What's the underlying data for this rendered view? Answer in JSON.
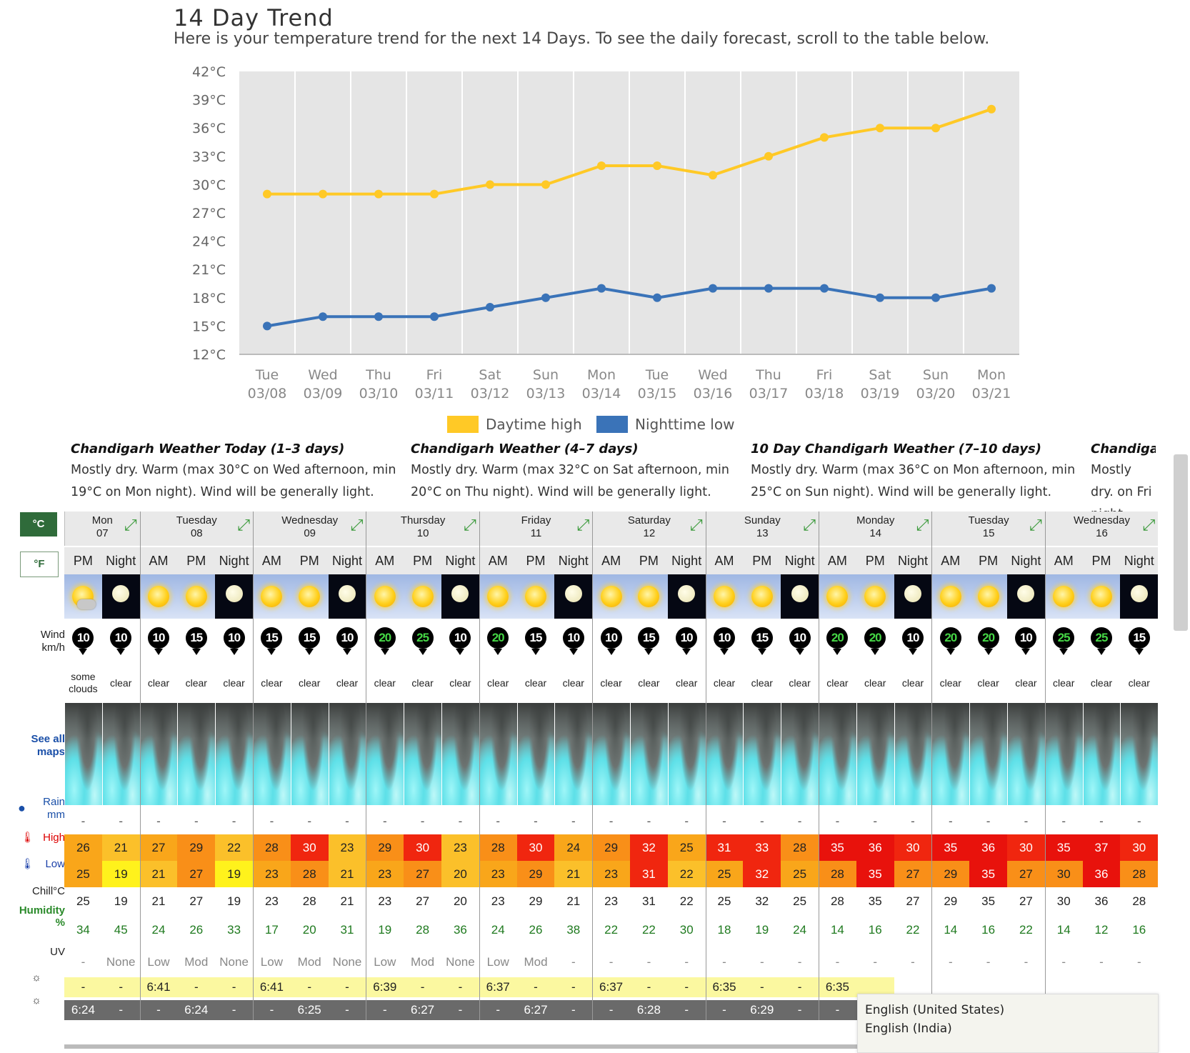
{
  "page": {
    "title": "14 Day Trend",
    "subtitle": "Here is your temperature trend for the next 14 Days. To see the daily forecast, scroll to the table below."
  },
  "chart_data": {
    "type": "line",
    "title": "14 Day Trend",
    "categories": [
      [
        "Tue",
        "03/08"
      ],
      [
        "Wed",
        "03/09"
      ],
      [
        "Thu",
        "03/10"
      ],
      [
        "Fri",
        "03/11"
      ],
      [
        "Sat",
        "03/12"
      ],
      [
        "Sun",
        "03/13"
      ],
      [
        "Mon",
        "03/14"
      ],
      [
        "Tue",
        "03/15"
      ],
      [
        "Wed",
        "03/16"
      ],
      [
        "Thu",
        "03/17"
      ],
      [
        "Fri",
        "03/18"
      ],
      [
        "Sat",
        "03/19"
      ],
      [
        "Sun",
        "03/20"
      ],
      [
        "Mon",
        "03/21"
      ]
    ],
    "y_ticks": [
      "42°C",
      "39°C",
      "36°C",
      "33°C",
      "30°C",
      "27°C",
      "24°C",
      "21°C",
      "18°C",
      "15°C",
      "12°C"
    ],
    "ylim": [
      12,
      42
    ],
    "series": [
      {
        "name": "Daytime high",
        "color": "#ffc926",
        "values": [
          29,
          29,
          29,
          29,
          30,
          30,
          32,
          32,
          31,
          33,
          35,
          36,
          36,
          38
        ]
      },
      {
        "name": "Nighttime low",
        "color": "#3a73b8",
        "values": [
          15,
          16,
          16,
          16,
          17,
          18,
          19,
          18,
          19,
          19,
          19,
          18,
          18,
          19
        ]
      }
    ],
    "grid": true,
    "legend": "bottom-center"
  },
  "summaries": [
    {
      "title": "Chandigarh Weather Today (1–3 days)",
      "text": "Mostly dry. Warm (max 30°C on Wed afternoon, min 19°C on Mon night). Wind will be generally light."
    },
    {
      "title": "Chandigarh Weather (4–7 days)",
      "text": "Mostly dry. Warm (max 32°C on Sat afternoon, min 20°C on Thu night). Wind will be generally light."
    },
    {
      "title": "10 Day Chandigarh Weather (7–10 days)",
      "text": "Mostly dry. Warm (max 36°C on Mon afternoon, min 25°C on Sun night). Wind will be generally light."
    },
    {
      "title": "Chandigarl",
      "text": "Mostly dry. on Fri night"
    }
  ],
  "labels": {
    "celsius": "°C",
    "fahrenheit": "°F",
    "wind": "Wind",
    "wind_unit": "km/h",
    "see_all": "See all",
    "maps": "maps",
    "rain": "Rain",
    "rain_unit": "mm",
    "high": "High",
    "low": "Low",
    "chill": "Chill°C",
    "humidity": "Humidity",
    "humidity_unit": "%",
    "uv": "UV"
  },
  "days": [
    {
      "name": "Mon",
      "date": "07"
    },
    {
      "name": "Tuesday",
      "date": "08"
    },
    {
      "name": "Wednesday",
      "date": "09"
    },
    {
      "name": "Thursday",
      "date": "10"
    },
    {
      "name": "Friday",
      "date": "11"
    },
    {
      "name": "Saturday",
      "date": "12"
    },
    {
      "name": "Sunday",
      "date": "13"
    },
    {
      "name": "Monday",
      "date": "14"
    },
    {
      "name": "Tuesday",
      "date": "15"
    },
    {
      "name": "Wednesday",
      "date": "16"
    }
  ],
  "periods": [
    {
      "p": "PM",
      "cond": "some clouds",
      "wind": "10",
      "high": "26",
      "low": "25",
      "chill": "25",
      "hum": "34",
      "uv": "-",
      "rain": "-",
      "sunrise": "-",
      "sunset": "6:24"
    },
    {
      "p": "Night",
      "cond": "clear",
      "wind": "10",
      "high": "21",
      "low": "19",
      "chill": "19",
      "hum": "45",
      "uv": "None",
      "rain": "-",
      "sunrise": "-",
      "sunset": "-"
    },
    {
      "p": "AM",
      "cond": "clear",
      "wind": "10",
      "high": "27",
      "low": "21",
      "chill": "21",
      "hum": "24",
      "uv": "Low",
      "rain": "-",
      "sunrise": "6:41",
      "sunset": "-"
    },
    {
      "p": "PM",
      "cond": "clear",
      "wind": "15",
      "high": "29",
      "low": "27",
      "chill": "27",
      "hum": "26",
      "uv": "Mod",
      "rain": "-",
      "sunrise": "-",
      "sunset": "6:24"
    },
    {
      "p": "Night",
      "cond": "clear",
      "wind": "10",
      "high": "22",
      "low": "19",
      "chill": "19",
      "hum": "33",
      "uv": "None",
      "rain": "-",
      "sunrise": "-",
      "sunset": "-"
    },
    {
      "p": "AM",
      "cond": "clear",
      "wind": "15",
      "high": "28",
      "low": "23",
      "chill": "23",
      "hum": "17",
      "uv": "Low",
      "rain": "-",
      "sunrise": "6:41",
      "sunset": "-"
    },
    {
      "p": "PM",
      "cond": "clear",
      "wind": "15",
      "high": "30",
      "low": "28",
      "chill": "28",
      "hum": "20",
      "uv": "Mod",
      "rain": "-",
      "sunrise": "-",
      "sunset": "6:25"
    },
    {
      "p": "Night",
      "cond": "clear",
      "wind": "10",
      "high": "23",
      "low": "21",
      "chill": "21",
      "hum": "31",
      "uv": "None",
      "rain": "-",
      "sunrise": "-",
      "sunset": "-"
    },
    {
      "p": "AM",
      "cond": "clear",
      "wind": "20",
      "high": "29",
      "low": "23",
      "chill": "23",
      "hum": "19",
      "uv": "Low",
      "rain": "-",
      "sunrise": "6:39",
      "sunset": "-"
    },
    {
      "p": "PM",
      "cond": "clear",
      "wind": "25",
      "high": "30",
      "low": "27",
      "chill": "27",
      "hum": "28",
      "uv": "Mod",
      "rain": "-",
      "sunrise": "-",
      "sunset": "6:27"
    },
    {
      "p": "Night",
      "cond": "clear",
      "wind": "10",
      "high": "23",
      "low": "20",
      "chill": "20",
      "hum": "36",
      "uv": "None",
      "rain": "-",
      "sunrise": "-",
      "sunset": "-"
    },
    {
      "p": "AM",
      "cond": "clear",
      "wind": "20",
      "high": "28",
      "low": "23",
      "chill": "23",
      "hum": "24",
      "uv": "Low",
      "rain": "-",
      "sunrise": "6:37",
      "sunset": "-"
    },
    {
      "p": "PM",
      "cond": "clear",
      "wind": "15",
      "high": "30",
      "low": "29",
      "chill": "29",
      "hum": "26",
      "uv": "Mod",
      "rain": "-",
      "sunrise": "-",
      "sunset": "6:27"
    },
    {
      "p": "Night",
      "cond": "clear",
      "wind": "10",
      "high": "24",
      "low": "21",
      "chill": "21",
      "hum": "38",
      "uv": "-",
      "rain": "-",
      "sunrise": "-",
      "sunset": "-"
    },
    {
      "p": "AM",
      "cond": "clear",
      "wind": "10",
      "high": "29",
      "low": "23",
      "chill": "23",
      "hum": "22",
      "uv": "-",
      "rain": "-",
      "sunrise": "6:37",
      "sunset": "-"
    },
    {
      "p": "PM",
      "cond": "clear",
      "wind": "15",
      "high": "32",
      "low": "31",
      "chill": "31",
      "hum": "22",
      "uv": "-",
      "rain": "-",
      "sunrise": "-",
      "sunset": "6:28"
    },
    {
      "p": "Night",
      "cond": "clear",
      "wind": "10",
      "high": "25",
      "low": "22",
      "chill": "22",
      "hum": "30",
      "uv": "-",
      "rain": "-",
      "sunrise": "-",
      "sunset": "-"
    },
    {
      "p": "AM",
      "cond": "clear",
      "wind": "10",
      "high": "31",
      "low": "25",
      "chill": "25",
      "hum": "18",
      "uv": "-",
      "rain": "-",
      "sunrise": "6:35",
      "sunset": "-"
    },
    {
      "p": "PM",
      "cond": "clear",
      "wind": "15",
      "high": "33",
      "low": "32",
      "chill": "32",
      "hum": "19",
      "uv": "-",
      "rain": "-",
      "sunrise": "-",
      "sunset": "6:29"
    },
    {
      "p": "Night",
      "cond": "clear",
      "wind": "10",
      "high": "28",
      "low": "25",
      "chill": "25",
      "hum": "24",
      "uv": "-",
      "rain": "-",
      "sunrise": "-",
      "sunset": "-"
    },
    {
      "p": "AM",
      "cond": "clear",
      "wind": "20",
      "high": "35",
      "low": "28",
      "chill": "28",
      "hum": "14",
      "uv": "-",
      "rain": "-",
      "sunrise": "6:35",
      "sunset": "-"
    },
    {
      "p": "PM",
      "cond": "clear",
      "wind": "20",
      "high": "36",
      "low": "35",
      "chill": "35",
      "hum": "16",
      "uv": "-",
      "rain": "-",
      "sunrise": "",
      "sunset": ""
    },
    {
      "p": "Night",
      "cond": "clear",
      "wind": "10",
      "high": "30",
      "low": "27",
      "chill": "27",
      "hum": "22",
      "uv": "-",
      "rain": "-",
      "sunrise": "",
      "sunset": ""
    },
    {
      "p": "AM",
      "cond": "clear",
      "wind": "20",
      "high": "35",
      "low": "29",
      "chill": "29",
      "hum": "14",
      "uv": "-",
      "rain": "-",
      "sunrise": "",
      "sunset": ""
    },
    {
      "p": "PM",
      "cond": "clear",
      "wind": "20",
      "high": "36",
      "low": "35",
      "chill": "35",
      "hum": "16",
      "uv": "-",
      "rain": "-",
      "sunrise": "",
      "sunset": ""
    },
    {
      "p": "Night",
      "cond": "clear",
      "wind": "10",
      "high": "30",
      "low": "27",
      "chill": "27",
      "hum": "22",
      "uv": "-",
      "rain": "-",
      "sunrise": "",
      "sunset": ""
    },
    {
      "p": "AM",
      "cond": "clear",
      "wind": "25",
      "high": "35",
      "low": "30",
      "chill": "30",
      "hum": "14",
      "uv": "-",
      "rain": "-",
      "sunrise": "",
      "sunset": ""
    },
    {
      "p": "PM",
      "cond": "clear",
      "wind": "25",
      "high": "37",
      "low": "36",
      "chill": "36",
      "hum": "12",
      "uv": "-",
      "rain": "-",
      "sunrise": "",
      "sunset": ""
    },
    {
      "p": "Night",
      "cond": "clear",
      "wind": "15",
      "high": "30",
      "low": "28",
      "chill": "28",
      "hum": "16",
      "uv": "-",
      "rain": "-",
      "sunrise": "",
      "sunset": ""
    }
  ],
  "language_popup": {
    "options": [
      "English (United States)",
      "English (India)"
    ]
  }
}
